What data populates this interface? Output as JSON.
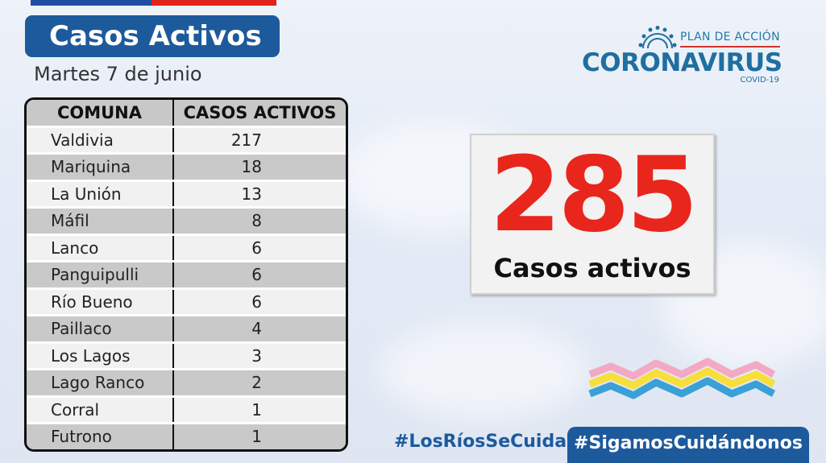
{
  "header": {
    "title": "Casos Activos",
    "date": "Martes 7 de junio"
  },
  "table": {
    "headers": [
      "COMUNA",
      "CASOS ACTIVOS"
    ],
    "rows": [
      {
        "comuna": "Valdivia",
        "casos": "217"
      },
      {
        "comuna": "Mariquina",
        "casos": "18"
      },
      {
        "comuna": "La Unión",
        "casos": "13"
      },
      {
        "comuna": "Máfil",
        "casos": "8"
      },
      {
        "comuna": "Lanco",
        "casos": "6"
      },
      {
        "comuna": "Panguipulli",
        "casos": "6"
      },
      {
        "comuna": "Río Bueno",
        "casos": "6"
      },
      {
        "comuna": "Paillaco",
        "casos": "4"
      },
      {
        "comuna": "Los Lagos",
        "casos": "3"
      },
      {
        "comuna": "Lago Ranco",
        "casos": "2"
      },
      {
        "comuna": "Corral",
        "casos": "1"
      },
      {
        "comuna": "Futrono",
        "casos": "1"
      }
    ]
  },
  "logo": {
    "plan": "PLAN DE ACCIÓN",
    "main": "CORONAVIRUS",
    "sub": "COVID-19",
    "icon": "virus-icon"
  },
  "summary": {
    "total": "285",
    "label": "Casos activos"
  },
  "footer": {
    "hashtag_left": "#LosRíosSeCuida",
    "hashtag_right": "#SigamosCuidándonos"
  },
  "colors": {
    "brand_blue": "#1d5a9c",
    "accent_red": "#e8261c",
    "flag_blue": "#1f4fa3",
    "flag_red": "#e2231a"
  }
}
